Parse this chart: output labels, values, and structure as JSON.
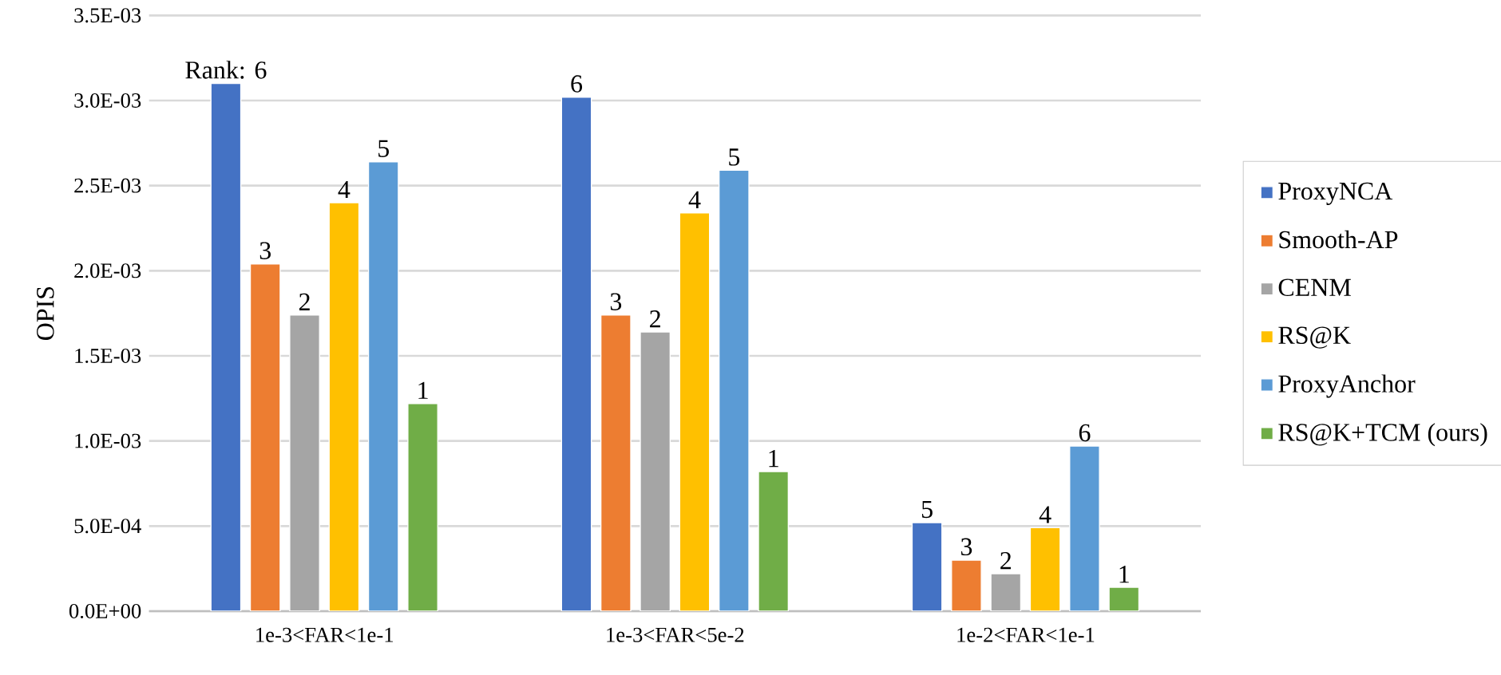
{
  "chart_data": {
    "type": "bar",
    "ylabel": "OPIS",
    "categories": [
      "1e-3<FAR<1e-1",
      "1e-3<FAR<5e-2",
      "1e-2<FAR<1e-1"
    ],
    "series": [
      {
        "name": "ProxyNCA",
        "color": "#4472c4",
        "values": [
          0.0031,
          0.00302,
          0.00052
        ]
      },
      {
        "name": "Smooth-AP",
        "color": "#ed7d31",
        "values": [
          0.00204,
          0.00174,
          0.0003
        ]
      },
      {
        "name": "CENM",
        "color": "#a5a5a5",
        "values": [
          0.00174,
          0.00164,
          0.00022
        ]
      },
      {
        "name": "RS@K",
        "color": "#ffc000",
        "values": [
          0.0024,
          0.00234,
          0.00049
        ]
      },
      {
        "name": "ProxyAnchor",
        "color": "#5b9bd5",
        "values": [
          0.00264,
          0.00259,
          0.00097
        ]
      },
      {
        "name": "RS@K+TCM (ours)",
        "color": "#70ad47",
        "values": [
          0.00122,
          0.00082,
          0.00014
        ]
      }
    ],
    "annotations": [
      "Rank: 6",
      "6",
      "5",
      "3",
      "3",
      "3",
      "2",
      "2",
      "2",
      "4",
      "4",
      "4",
      "5",
      "5",
      "6",
      "1",
      "1",
      "1"
    ],
    "ylim": [
      0,
      0.0035
    ],
    "yticks": [
      {
        "value": 0,
        "label": "0.0E+00"
      },
      {
        "value": 0.0005,
        "label": "5.0E-04"
      },
      {
        "value": 0.001,
        "label": "1.0E-03"
      },
      {
        "value": 0.0015,
        "label": "1.5E-03"
      },
      {
        "value": 0.002,
        "label": "2.0E-03"
      },
      {
        "value": 0.0025,
        "label": "2.5E-03"
      },
      {
        "value": 0.003,
        "label": "3.0E-03"
      },
      {
        "value": 0.0035,
        "label": "3.5E-03"
      }
    ],
    "grid": "y",
    "legend": "right"
  }
}
